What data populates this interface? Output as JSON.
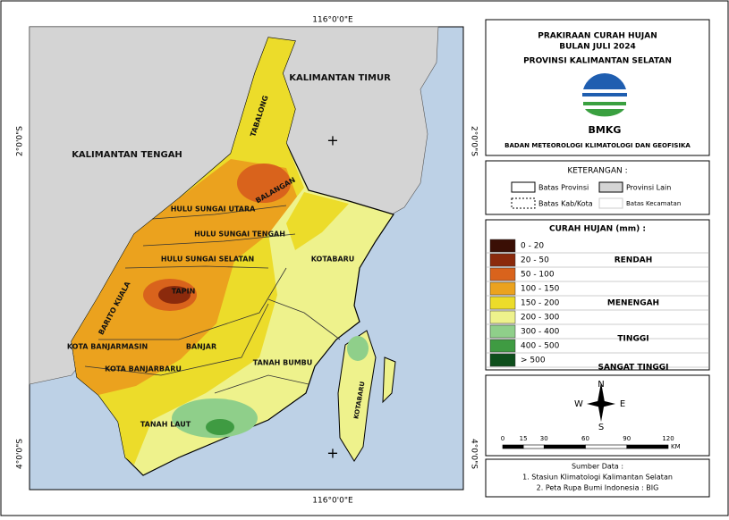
{
  "map": {
    "graticule": {
      "top": "116°0'0\"E",
      "bottom": "116°0'0\"E",
      "left_upper": "2°0'0\"S",
      "right_upper": "2°0'0\"S",
      "left_lower": "4°0'0\"S",
      "right_lower": "4°0'0\"S"
    },
    "labels": [
      "KALIMANTAN TIMUR",
      "KALIMANTAN TENGAH",
      "TABALONG",
      "BALANGAN",
      "HULU SUNGAI UTARA",
      "HULU SUNGAI TENGAH",
      "HULU SUNGAI SELATAN",
      "TAPIN",
      "BARITO KUALA",
      "KOTA BANJARMASIN",
      "BANJAR",
      "KOTA BANJARBARU",
      "KOTABARU",
      "TANAH BUMBU",
      "TANAH LAUT",
      "KOTABARU"
    ]
  },
  "title": {
    "line1": "PRAKIRAAN CURAH HUJAN",
    "line2": "BULAN JULI 2024",
    "line3": "PROVINSI KALIMANTAN SELATAN",
    "logo_text": "BMKG",
    "agency": "BADAN METEOROLOGI KLIMATOLOGI DAN GEOFISIKA"
  },
  "keterangan": {
    "title": "KETERANGAN :",
    "items": [
      "Batas Provinsi",
      "Provinsi Lain",
      "Batas Kab/Kota",
      "Batas Kecamatan"
    ]
  },
  "legend": {
    "title": "CURAH HUJAN (mm) :",
    "classes": [
      {
        "label": "0 - 20",
        "color": "#3a0f05"
      },
      {
        "label": "20 - 50",
        "color": "#8b2a0c"
      },
      {
        "label": "50 - 100",
        "color": "#d9631c"
      },
      {
        "label": "100 - 150",
        "color": "#eba21e"
      },
      {
        "label": "150  - 200",
        "color": "#ecdc2a"
      },
      {
        "label": "200 - 300",
        "color": "#eef28c"
      },
      {
        "label": "300 - 400",
        "color": "#8fcf8a"
      },
      {
        "label": "400 - 500",
        "color": "#3f9b42"
      },
      {
        "label": "> 500",
        "color": "#0e4f1c"
      }
    ],
    "groups": [
      "RENDAH",
      "MENENGAH",
      "TINGGI",
      "SANGAT TINGGI"
    ]
  },
  "compass": {
    "n": "N",
    "s": "S",
    "e": "E",
    "w": "W"
  },
  "scale_bar": {
    "ticks": [
      0,
      15,
      30,
      60,
      90,
      120
    ],
    "unit": "KM"
  },
  "source": {
    "title": "Sumber Data :",
    "line1": "1. Stasiun Klimatologi Kalimantan Selatan",
    "line2": "2. Peta Rupa Bumi Indonesia : BIG"
  }
}
